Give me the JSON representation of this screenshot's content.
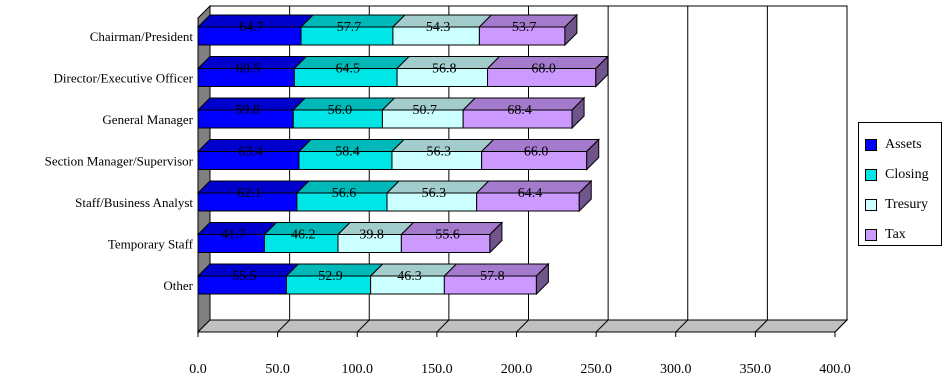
{
  "chart_data": {
    "type": "bar",
    "stacked": true,
    "orientation": "horizontal",
    "style": "3d",
    "categories": [
      "Chairman/President",
      "Director/Executive Officer",
      "General Manager",
      "Section Manager/Supervisor",
      "Staff/Business Analyst",
      "Temporary Staff",
      "Other"
    ],
    "series": [
      {
        "name": "Assets",
        "color": "#0000ff",
        "values": [
          64.7,
          60.5,
          59.8,
          63.4,
          62.1,
          41.7,
          55.5
        ]
      },
      {
        "name": "Closing",
        "color": "#00e6e6",
        "values": [
          57.7,
          64.5,
          56.0,
          58.4,
          56.6,
          46.2,
          52.9
        ]
      },
      {
        "name": "Tresury",
        "color": "#ccffff",
        "values": [
          54.3,
          56.8,
          50.7,
          56.3,
          56.3,
          39.8,
          46.3
        ]
      },
      {
        "name": "Tax",
        "color": "#cc99ff",
        "values": [
          53.7,
          68.0,
          68.4,
          66.0,
          64.4,
          55.6,
          57.8
        ]
      }
    ],
    "xlim": [
      0,
      400
    ],
    "xticks": [
      "0.0",
      "50.0",
      "100.0",
      "150.0",
      "200.0",
      "250.0",
      "300.0",
      "350.0",
      "400.0"
    ],
    "grid": true,
    "legend_position": "right",
    "title": "",
    "xlabel": "",
    "ylabel": ""
  }
}
